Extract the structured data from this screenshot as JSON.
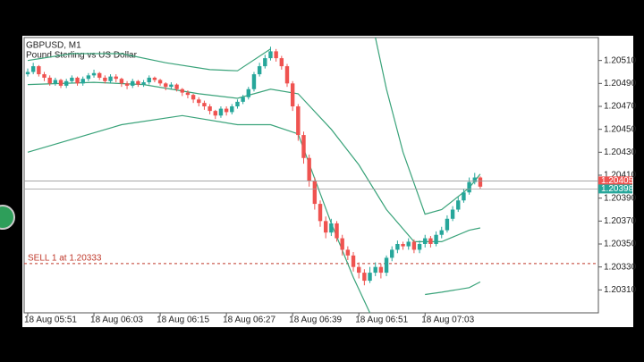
{
  "chart_data": {
    "type": "candlestick",
    "symbol": "GBPUSD, M1",
    "description": "Pound Sterling vs US Dollar",
    "up_color": "#26a69a",
    "down_color": "#ef5350",
    "categories": [
      "18 Aug 05:51",
      null,
      null,
      null,
      null,
      null,
      null,
      null,
      null,
      null,
      null,
      null,
      "18 Aug 06:03",
      null,
      null,
      null,
      null,
      null,
      null,
      null,
      null,
      null,
      null,
      null,
      "18 Aug 06:15",
      null,
      null,
      null,
      null,
      null,
      null,
      null,
      null,
      null,
      null,
      null,
      "18 Aug 06:27",
      null,
      null,
      null,
      null,
      null,
      null,
      null,
      null,
      null,
      null,
      null,
      "18 Aug 06:39",
      null,
      null,
      null,
      null,
      null,
      null,
      null,
      null,
      null,
      null,
      null,
      "18 Aug 06:51",
      null,
      null,
      null,
      null,
      null,
      null,
      null,
      null,
      null,
      null,
      null,
      "18 Aug 07:03",
      null,
      null,
      null,
      null,
      null,
      null,
      null,
      null,
      null,
      null
    ],
    "open": [
      1.20498,
      1.205,
      1.20505,
      1.20498,
      1.20495,
      1.2049,
      1.20493,
      1.20488,
      1.20492,
      1.20495,
      1.2049,
      1.20494,
      1.20497,
      1.20499,
      1.20495,
      1.20492,
      1.20496,
      1.20494,
      1.2049,
      1.20488,
      1.20492,
      1.20489,
      1.20491,
      1.20495,
      1.20493,
      1.2049,
      1.20487,
      1.20489,
      1.20485,
      1.20482,
      1.2048,
      1.20476,
      1.20473,
      1.2047,
      1.20466,
      1.20462,
      1.20468,
      1.20465,
      1.2047,
      1.20474,
      1.20478,
      1.20485,
      1.20498,
      1.20505,
      1.20512,
      1.20518,
      1.20512,
      1.20505,
      1.2049,
      1.2047,
      1.20445,
      1.20425,
      1.20405,
      1.20385,
      1.2037,
      1.2036,
      1.20368,
      1.20355,
      1.20345,
      1.2034,
      1.2033,
      1.20325,
      1.20318,
      1.20325,
      1.2033,
      1.20325,
      1.20338,
      1.20345,
      1.2035,
      1.20348,
      1.20352,
      1.20345,
      1.2035,
      1.20355,
      1.2035,
      1.20358,
      1.20362,
      1.20372,
      1.2038,
      1.20388,
      1.20395,
      1.20404,
      1.20408
    ],
    "high": [
      1.20503,
      1.20508,
      1.20506,
      1.205,
      1.20497,
      1.20495,
      1.20494,
      1.20494,
      1.20497,
      1.20496,
      1.20496,
      1.20499,
      1.20502,
      1.205,
      1.20497,
      1.20498,
      1.20498,
      1.20495,
      1.20492,
      1.20494,
      1.20493,
      1.20493,
      1.20497,
      1.20496,
      1.20494,
      1.20491,
      1.20491,
      1.2049,
      1.20486,
      1.20484,
      1.20481,
      1.20478,
      1.20475,
      1.20472,
      1.20467,
      1.2047,
      1.2047,
      1.20472,
      1.20476,
      1.2048,
      1.20487,
      1.205,
      1.20508,
      1.20515,
      1.20522,
      1.2052,
      1.20514,
      1.20507,
      1.20492,
      1.20472,
      1.20448,
      1.20428,
      1.20408,
      1.20388,
      1.20374,
      1.20372,
      1.2037,
      1.20358,
      1.20348,
      1.20343,
      1.20334,
      1.20328,
      1.2033,
      1.20334,
      1.20333,
      1.2034,
      1.20348,
      1.20353,
      1.20352,
      1.20355,
      1.20354,
      1.20353,
      1.20358,
      1.20357,
      1.20361,
      1.20365,
      1.20375,
      1.20383,
      1.20391,
      1.20398,
      1.20408,
      1.20412,
      1.20409
    ],
    "low": [
      1.20496,
      1.20498,
      1.20496,
      1.20492,
      1.20488,
      1.20488,
      1.20486,
      1.20486,
      1.2049,
      1.20488,
      1.20488,
      1.20492,
      1.20495,
      1.20493,
      1.2049,
      1.2049,
      1.20491,
      1.20487,
      1.20485,
      1.20486,
      1.20487,
      1.20487,
      1.20489,
      1.20491,
      1.20488,
      1.20484,
      1.20485,
      1.20483,
      1.20479,
      1.20477,
      1.20473,
      1.2047,
      1.20467,
      1.20463,
      1.20459,
      1.2046,
      1.20462,
      1.20463,
      1.20468,
      1.20472,
      1.20476,
      1.20483,
      1.20496,
      1.20503,
      1.2051,
      1.20509,
      1.20502,
      1.20487,
      1.20466,
      1.2044,
      1.2042,
      1.204,
      1.2038,
      1.20365,
      1.20355,
      1.20357,
      1.20352,
      1.2034,
      1.20336,
      1.20326,
      1.2032,
      1.20314,
      1.20316,
      1.20322,
      1.2032,
      1.20322,
      1.20335,
      1.20342,
      1.20345,
      1.20345,
      1.20342,
      1.20342,
      1.20347,
      1.20347,
      1.20348,
      1.20355,
      1.2036,
      1.2037,
      1.20378,
      1.20386,
      1.20393,
      1.20402,
      1.20398
    ],
    "close": [
      1.205,
      1.20505,
      1.20498,
      1.20495,
      1.2049,
      1.20493,
      1.20488,
      1.20492,
      1.20495,
      1.2049,
      1.20494,
      1.20497,
      1.20499,
      1.20495,
      1.20492,
      1.20496,
      1.20494,
      1.2049,
      1.20488,
      1.20492,
      1.20489,
      1.20491,
      1.20495,
      1.20493,
      1.2049,
      1.20487,
      1.20489,
      1.20485,
      1.20482,
      1.2048,
      1.20476,
      1.20473,
      1.2047,
      1.20466,
      1.20462,
      1.20468,
      1.20465,
      1.2047,
      1.20474,
      1.20478,
      1.20485,
      1.20498,
      1.20505,
      1.20512,
      1.20518,
      1.20512,
      1.20505,
      1.2049,
      1.2047,
      1.20445,
      1.20425,
      1.20405,
      1.20385,
      1.2037,
      1.2036,
      1.20368,
      1.20355,
      1.20345,
      1.2034,
      1.2033,
      1.20325,
      1.20318,
      1.20325,
      1.2033,
      1.20325,
      1.20338,
      1.20345,
      1.2035,
      1.20348,
      1.20352,
      1.20345,
      1.2035,
      1.20355,
      1.2035,
      1.20358,
      1.20362,
      1.20372,
      1.2038,
      1.20388,
      1.20395,
      1.20404,
      1.20408,
      1.204
    ],
    "series": [
      {
        "type": "line",
        "color": "#3aa37a",
        "x": [
          0,
          8,
          17,
          25,
          33,
          38,
          44,
          45,
          63,
          65,
          68,
          72,
          75,
          80,
          82
        ],
        "values": [
          1.2051,
          1.20516,
          1.20516,
          1.20508,
          1.20502,
          1.20501,
          1.2052,
          null,
          1.2053,
          1.20485,
          1.2043,
          1.20376,
          1.2038,
          1.20399,
          1.20411
        ]
      },
      {
        "type": "line",
        "color": "#3aa37a",
        "x": [
          0,
          12,
          21,
          31,
          38,
          44,
          49,
          55,
          60,
          65,
          70,
          75,
          80,
          82
        ],
        "values": [
          1.20489,
          1.20491,
          1.20489,
          1.20481,
          1.20477,
          1.20485,
          1.20481,
          1.2045,
          1.20419,
          1.2038,
          1.20352,
          1.20352,
          1.20362,
          1.20364
        ]
      },
      {
        "type": "line",
        "color": "#3aa37a",
        "x": [
          0,
          17,
          28,
          38,
          44,
          49,
          55,
          59,
          62,
          70,
          72,
          75,
          80,
          82
        ],
        "values": [
          1.2043,
          1.20454,
          1.20462,
          1.20454,
          1.20454,
          1.20446,
          1.20368,
          1.20321,
          1.2029,
          null,
          1.20306,
          1.20308,
          1.20312,
          1.20317
        ]
      }
    ],
    "order": {
      "label": "SELL 1 at 1.20333",
      "value": 1.20333,
      "color": "#c0392b"
    },
    "ask": 1.20405,
    "ask_color": "#ef5350",
    "bid": 1.20398,
    "bid_color": "#26a69a",
    "ylim": [
      1.2029,
      1.2053
    ],
    "yticks": [
      {
        "value": 1.2051,
        "label": "1.20510"
      },
      {
        "value": 1.2049,
        "label": "1.20490"
      },
      {
        "value": 1.2047,
        "label": "1.20470"
      },
      {
        "value": 1.2045,
        "label": "1.20450"
      },
      {
        "value": 1.2043,
        "label": "1.20430"
      },
      {
        "value": 1.2041,
        "label": "1.20410"
      },
      {
        "value": 1.2039,
        "label": "1.20390"
      },
      {
        "value": 1.2037,
        "label": "1.20370"
      },
      {
        "value": 1.2035,
        "label": "1.20350"
      },
      {
        "value": 1.2033,
        "label": "1.20330"
      },
      {
        "value": 1.2031,
        "label": "1.20310"
      }
    ],
    "grid": false
  }
}
